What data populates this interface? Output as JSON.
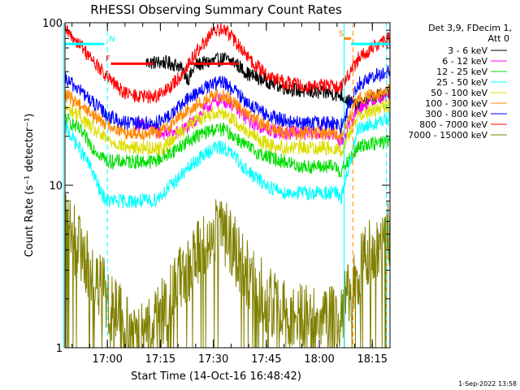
{
  "chart_data": {
    "type": "line",
    "title": "RHESSI Observing Summary Count Rates",
    "xlabel": "Start Time (14-Oct-16 16:48:42)",
    "ylabel": "Count Rate (s⁻¹ detector⁻¹)",
    "y_scale": "log",
    "ylim": [
      1,
      100
    ],
    "xlim_minutes": [
      -12,
      80
    ],
    "x_ticks": [
      {
        "min": 0,
        "label": "17:00"
      },
      {
        "min": 15,
        "label": "17:15"
      },
      {
        "min": 30,
        "label": "17:30"
      },
      {
        "min": 45,
        "label": "17:45"
      },
      {
        "min": 60,
        "label": "18:00"
      },
      {
        "min": 75,
        "label": "18:15"
      }
    ],
    "y_ticks": [
      {
        "value": 1,
        "label": "1"
      },
      {
        "value": 10,
        "label": "10"
      },
      {
        "value": 100,
        "label": "100"
      }
    ],
    "legend": {
      "header1": "Det 3,9, FDecim 1,",
      "header2": "Att 0",
      "position": "right"
    },
    "series": [
      {
        "name": "3 - 6 keV",
        "color": "#000000",
        "points": [
          [
            11,
            57
          ],
          [
            16,
            57
          ],
          [
            20,
            55
          ],
          [
            23,
            45
          ],
          [
            25,
            55
          ],
          [
            30,
            58
          ],
          [
            33,
            60
          ],
          [
            36,
            57
          ],
          [
            40,
            48
          ],
          [
            45,
            44
          ],
          [
            50,
            40
          ],
          [
            55,
            38
          ],
          [
            60,
            37
          ],
          [
            63,
            37
          ],
          [
            65,
            36
          ],
          [
            66,
            36
          ],
          [
            71,
            30
          ],
          [
            73,
            33
          ],
          [
            76,
            35
          ],
          [
            80,
            38
          ]
        ]
      },
      {
        "name": "6 - 12 keV",
        "color": "#ff00ff",
        "points": [
          [
            8,
            24
          ],
          [
            11,
            23
          ],
          [
            15,
            21
          ],
          [
            20,
            21
          ],
          [
            24,
            24
          ],
          [
            28,
            30
          ],
          [
            31,
            33
          ],
          [
            34,
            33
          ],
          [
            37,
            29
          ],
          [
            40,
            25
          ],
          [
            45,
            22
          ],
          [
            50,
            21
          ],
          [
            55,
            21
          ],
          [
            60,
            21
          ],
          [
            63,
            21
          ],
          [
            65,
            20
          ],
          [
            66,
            18
          ],
          [
            71,
            30
          ],
          [
            73,
            31
          ],
          [
            76,
            34
          ],
          [
            80,
            36
          ]
        ]
      },
      {
        "name": "12 - 25 keV",
        "color": "#00dd00",
        "points": [
          [
            -12,
            26
          ],
          [
            -8,
            22
          ],
          [
            -4,
            17
          ],
          [
            0,
            14
          ],
          [
            3,
            14
          ],
          [
            6,
            14
          ],
          [
            10,
            14
          ],
          [
            13,
            14
          ],
          [
            16,
            15
          ],
          [
            20,
            17
          ],
          [
            25,
            20
          ],
          [
            30,
            22
          ],
          [
            33,
            22
          ],
          [
            36,
            20
          ],
          [
            40,
            17
          ],
          [
            45,
            15
          ],
          [
            50,
            14
          ],
          [
            55,
            13
          ],
          [
            60,
            13
          ],
          [
            63,
            13
          ],
          [
            65,
            13
          ],
          [
            66,
            12
          ],
          [
            71,
            17
          ],
          [
            73,
            18
          ],
          [
            76,
            18
          ],
          [
            80,
            19
          ]
        ]
      },
      {
        "name": "25 - 50 keV",
        "color": "#00ffff",
        "points": [
          [
            -12,
            23
          ],
          [
            -8,
            17
          ],
          [
            -4,
            12
          ],
          [
            -2,
            9
          ],
          [
            0,
            8
          ],
          [
            3,
            8
          ],
          [
            6,
            8
          ],
          [
            10,
            8
          ],
          [
            13,
            8
          ],
          [
            16,
            9
          ],
          [
            20,
            11
          ],
          [
            25,
            14
          ],
          [
            30,
            17
          ],
          [
            33,
            17
          ],
          [
            36,
            15
          ],
          [
            40,
            12
          ],
          [
            45,
            10
          ],
          [
            50,
            9
          ],
          [
            55,
            9
          ],
          [
            60,
            9
          ],
          [
            63,
            9
          ],
          [
            65,
            9
          ],
          [
            66,
            8
          ],
          [
            71,
            22
          ],
          [
            73,
            23
          ],
          [
            76,
            24
          ],
          [
            80,
            26
          ]
        ]
      },
      {
        "name": "50 - 100 keV",
        "color": "#dddd00",
        "points": [
          [
            -12,
            30
          ],
          [
            -8,
            27
          ],
          [
            -4,
            22
          ],
          [
            0,
            19
          ],
          [
            3,
            18
          ],
          [
            6,
            17
          ],
          [
            10,
            17
          ],
          [
            13,
            17
          ],
          [
            16,
            17
          ],
          [
            20,
            21
          ],
          [
            25,
            25
          ],
          [
            30,
            28
          ],
          [
            33,
            28
          ],
          [
            36,
            25
          ],
          [
            40,
            21
          ],
          [
            45,
            18
          ],
          [
            50,
            17
          ],
          [
            55,
            17
          ],
          [
            60,
            17
          ],
          [
            63,
            17
          ],
          [
            65,
            17
          ],
          [
            66,
            16
          ],
          [
            71,
            27
          ],
          [
            73,
            28
          ],
          [
            76,
            29
          ],
          [
            80,
            31
          ]
        ]
      },
      {
        "name": "100 - 300 keV",
        "color": "#ff8800",
        "points": [
          [
            -12,
            36
          ],
          [
            -8,
            32
          ],
          [
            -4,
            27
          ],
          [
            0,
            24
          ],
          [
            3,
            22
          ],
          [
            6,
            21
          ],
          [
            10,
            21
          ],
          [
            13,
            21
          ],
          [
            16,
            22
          ],
          [
            20,
            26
          ],
          [
            25,
            31
          ],
          [
            30,
            35
          ],
          [
            33,
            36
          ],
          [
            36,
            32
          ],
          [
            40,
            27
          ],
          [
            45,
            23
          ],
          [
            50,
            21
          ],
          [
            55,
            21
          ],
          [
            60,
            21
          ],
          [
            63,
            21
          ],
          [
            65,
            21
          ],
          [
            66,
            20
          ],
          [
            71,
            34
          ],
          [
            73,
            35
          ],
          [
            76,
            36
          ],
          [
            80,
            38
          ]
        ]
      },
      {
        "name": "300 - 800 keV",
        "color": "#0000ff",
        "points": [
          [
            -12,
            45
          ],
          [
            -8,
            39
          ],
          [
            -4,
            32
          ],
          [
            0,
            27
          ],
          [
            3,
            25
          ],
          [
            6,
            24
          ],
          [
            10,
            24
          ],
          [
            13,
            24
          ],
          [
            16,
            25
          ],
          [
            20,
            30
          ],
          [
            25,
            37
          ],
          [
            30,
            42
          ],
          [
            33,
            43
          ],
          [
            36,
            38
          ],
          [
            40,
            32
          ],
          [
            45,
            27
          ],
          [
            50,
            25
          ],
          [
            55,
            24
          ],
          [
            60,
            24
          ],
          [
            63,
            24
          ],
          [
            65,
            24
          ],
          [
            66,
            23
          ],
          [
            71,
            42
          ],
          [
            73,
            44
          ],
          [
            76,
            47
          ],
          [
            80,
            50
          ]
        ]
      },
      {
        "name": "800 - 7000 keV",
        "color": "#ff0000",
        "points": [
          [
            -12,
            90
          ],
          [
            -8,
            75
          ],
          [
            -4,
            58
          ],
          [
            0,
            46
          ],
          [
            3,
            40
          ],
          [
            6,
            36
          ],
          [
            10,
            35
          ],
          [
            13,
            35
          ],
          [
            16,
            37
          ],
          [
            20,
            45
          ],
          [
            25,
            65
          ],
          [
            30,
            88
          ],
          [
            33,
            92
          ],
          [
            36,
            78
          ],
          [
            40,
            60
          ],
          [
            45,
            48
          ],
          [
            50,
            43
          ],
          [
            55,
            41
          ],
          [
            60,
            41
          ],
          [
            63,
            41
          ],
          [
            65,
            41
          ],
          [
            66,
            40
          ],
          [
            71,
            60
          ],
          [
            73,
            66
          ],
          [
            76,
            72
          ],
          [
            80,
            80
          ]
        ]
      },
      {
        "name": "7000 - 15000 keV",
        "color": "#808000",
        "points": [
          [
            -12,
            5.5
          ],
          [
            -9,
            4.5
          ],
          [
            -6,
            3.4
          ],
          [
            -3,
            2.6
          ],
          [
            0,
            2.0
          ],
          [
            3,
            1.6
          ],
          [
            6,
            1.3
          ],
          [
            10,
            1.2
          ],
          [
            13,
            1.3
          ],
          [
            16,
            1.7
          ],
          [
            20,
            2.4
          ],
          [
            25,
            3.6
          ],
          [
            30,
            5.0
          ],
          [
            33,
            5.3
          ],
          [
            36,
            4.0
          ],
          [
            40,
            2.8
          ],
          [
            45,
            2.0
          ],
          [
            50,
            1.6
          ],
          [
            55,
            1.5
          ],
          [
            60,
            1.5
          ],
          [
            63,
            1.5
          ],
          [
            65,
            1.4
          ],
          [
            71,
            3.0
          ],
          [
            73,
            3.6
          ],
          [
            76,
            4.2
          ],
          [
            80,
            5.0
          ]
        ]
      }
    ],
    "flag_bars": [
      {
        "label": "N",
        "color": "#00ffff",
        "x0": -12,
        "x1": -1,
        "level": 74,
        "label_x": 0
      },
      {
        "label": "F",
        "color": "#ff0000",
        "x0": 1,
        "x1": 13,
        "level": 56,
        "label_x": -1
      },
      {
        "label": "",
        "color": "#ff0000",
        "x0": 23,
        "x1": 37,
        "level": 56,
        "label_x": 23
      },
      {
        "label": "S",
        "color": "#ff8800",
        "x0": 67,
        "x1": 69,
        "level": 80,
        "label_x": 65
      },
      {
        "label": "",
        "color": "#00ffff",
        "x0": 69,
        "x1": 80,
        "level": 74,
        "label_x": 69
      }
    ],
    "vertical_markers": [
      {
        "x": -12.4,
        "color": "#00ffff",
        "style": "solid"
      },
      {
        "x": 0,
        "color": "#00ffff",
        "style": "dashed"
      },
      {
        "x": 67,
        "color": "#00ffff",
        "style": "solid"
      },
      {
        "x": 69.5,
        "color": "#ff8800",
        "style": "dashed"
      },
      {
        "x": 79,
        "color": "#00ffff",
        "style": "dashed"
      }
    ]
  },
  "footer": {
    "timestamp": "1-Sep-2022 13:58"
  }
}
